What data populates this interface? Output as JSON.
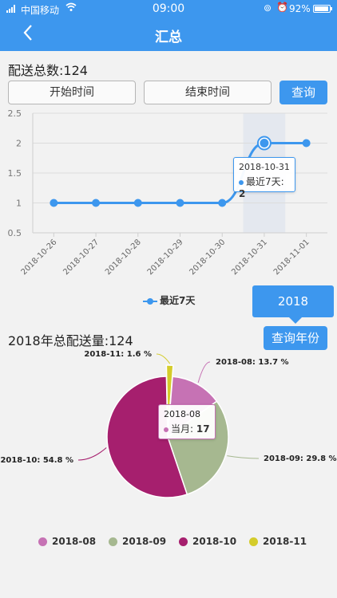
{
  "status_bar": {
    "carrier": "中国移动",
    "time": "09:00",
    "battery": "92%"
  },
  "nav": {
    "title": "汇总"
  },
  "summary": {
    "total_label": "配送总数:124",
    "start_time_label": "开始时间",
    "end_time_label": "结束时间",
    "query_label": "查询"
  },
  "line_tooltip": {
    "date": "2018-10-31",
    "series": "最近7天",
    "value": "2"
  },
  "year_section": {
    "year_tip": "2018",
    "query_year_label": "查询年份",
    "total_label": "2018年总配送量:124"
  },
  "pie_tooltip": {
    "month": "2018-08",
    "series": "当月",
    "value": "17"
  },
  "colors": {
    "accent": "#3d97ee",
    "aug": "#c672b4",
    "sep": "#a6b890",
    "oct": "#a61f6e",
    "nov": "#d4cc2b"
  },
  "chart_data": [
    {
      "type": "line",
      "x": [
        "2018-10-26",
        "2018-10-27",
        "2018-10-28",
        "2018-10-29",
        "2018-10-30",
        "2018-10-31",
        "2018-11-01"
      ],
      "series": [
        {
          "name": "最近7天",
          "values": [
            1,
            1,
            1,
            1,
            1,
            2,
            2
          ]
        }
      ],
      "yticks": [
        "2.5",
        "2",
        "1.5",
        "1",
        "0.5"
      ],
      "ylim": [
        0.5,
        2.5
      ],
      "highlight_index": 5,
      "legend": "bottom",
      "grid": true
    },
    {
      "type": "pie",
      "labels": [
        "2018-08",
        "2018-09",
        "2018-10",
        "2018-11"
      ],
      "values": [
        17,
        37,
        68,
        2
      ],
      "slice_labels": [
        "2018-08: 13.7 %",
        "2018-09: 29.8 %",
        "2018-10: 54.8 %",
        "2018-11: 1.6 %"
      ],
      "legend": "bottom"
    }
  ]
}
